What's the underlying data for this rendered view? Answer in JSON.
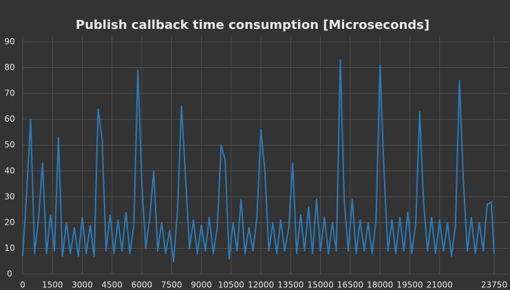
{
  "chart_data": {
    "type": "line",
    "title": "Publish callback time consumption [Microseconds]",
    "x": [
      0,
      200,
      400,
      600,
      800,
      1000,
      1200,
      1400,
      1600,
      1800,
      2000,
      2200,
      2400,
      2600,
      2800,
      3000,
      3200,
      3400,
      3600,
      3800,
      4000,
      4200,
      4400,
      4600,
      4800,
      5000,
      5200,
      5400,
      5600,
      5800,
      6000,
      6200,
      6400,
      6600,
      6800,
      7000,
      7200,
      7400,
      7600,
      7800,
      8000,
      8200,
      8400,
      8600,
      8800,
      9000,
      9200,
      9400,
      9600,
      9800,
      10000,
      10200,
      10400,
      10600,
      10800,
      11000,
      11200,
      11400,
      11600,
      11800,
      12000,
      12200,
      12400,
      12600,
      12800,
      13000,
      13200,
      13400,
      13600,
      13800,
      14000,
      14200,
      14400,
      14600,
      14800,
      15000,
      15200,
      15400,
      15600,
      15800,
      16000,
      16200,
      16400,
      16600,
      16800,
      17000,
      17200,
      17400,
      17600,
      17800,
      18000,
      18200,
      18400,
      18600,
      18800,
      19000,
      19200,
      19400,
      19600,
      19800,
      20000,
      20200,
      20400,
      20600,
      20800,
      21000,
      21200,
      21400,
      21600,
      21800,
      22000,
      22200,
      22400,
      22600,
      22800,
      23000,
      23200,
      23400,
      23600,
      23750
    ],
    "series": [
      {
        "color": "#2b7bba",
        "values": [
          7,
          32,
          60,
          8,
          22,
          43,
          8,
          23,
          9,
          53,
          7,
          20,
          8,
          18,
          7,
          22,
          8,
          19,
          7,
          64,
          52,
          9,
          23,
          8,
          21,
          9,
          24,
          8,
          19,
          79,
          35,
          10,
          22,
          40,
          9,
          20,
          8,
          17,
          5,
          25,
          65,
          38,
          10,
          21,
          8,
          19,
          9,
          22,
          8,
          18,
          50,
          44,
          6,
          20,
          9,
          29,
          8,
          18,
          9,
          22,
          56,
          40,
          9,
          20,
          8,
          21,
          9,
          18,
          43,
          8,
          23,
          9,
          26,
          8,
          29,
          9,
          22,
          8,
          20,
          9,
          83,
          28,
          9,
          29,
          8,
          21,
          9,
          20,
          8,
          21,
          81,
          40,
          9,
          21,
          8,
          22,
          9,
          24,
          8,
          20,
          63,
          27,
          9,
          22,
          8,
          21,
          9,
          20,
          7,
          19,
          75,
          36,
          9,
          22,
          8,
          20,
          9,
          27,
          28,
          8
        ]
      }
    ],
    "xlim": [
      0,
      23750
    ],
    "ylim": [
      0,
      90
    ],
    "xticks": [
      0,
      1500,
      3000,
      4500,
      6000,
      7500,
      9000,
      10500,
      12000,
      13500,
      15000,
      16500,
      18000,
      19500,
      21000,
      23750
    ],
    "yticks": [
      0,
      10,
      20,
      30,
      40,
      50,
      60,
      70,
      80,
      90
    ],
    "grid": true
  }
}
